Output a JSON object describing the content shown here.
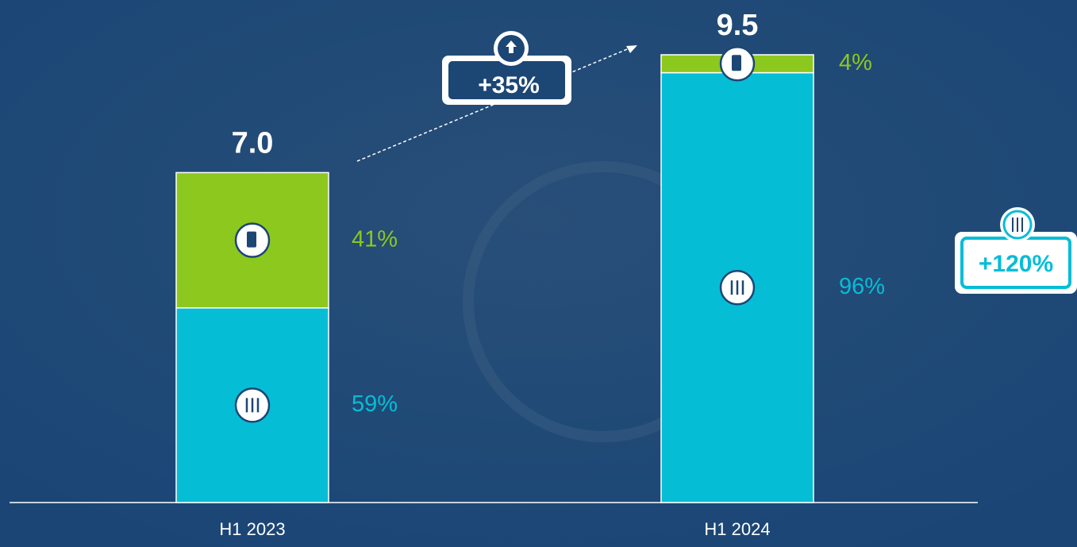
{
  "chart_data": {
    "type": "stacked-bar",
    "categories": [
      "H1 2023",
      "H1 2024"
    ],
    "totals": {
      "values": [
        7.0,
        9.5
      ],
      "value_labels": [
        "7.0",
        "9.5"
      ]
    },
    "series": [
      {
        "color": "#06bdd6",
        "values": [
          59,
          96
        ],
        "value_labels": [
          "59%",
          "96%"
        ]
      },
      {
        "color": "#8cc81e",
        "values": [
          41,
          4
        ],
        "value_labels": [
          "41%",
          "4%"
        ]
      }
    ],
    "annotations": [
      "+35%",
      "+120%"
    ]
  }
}
